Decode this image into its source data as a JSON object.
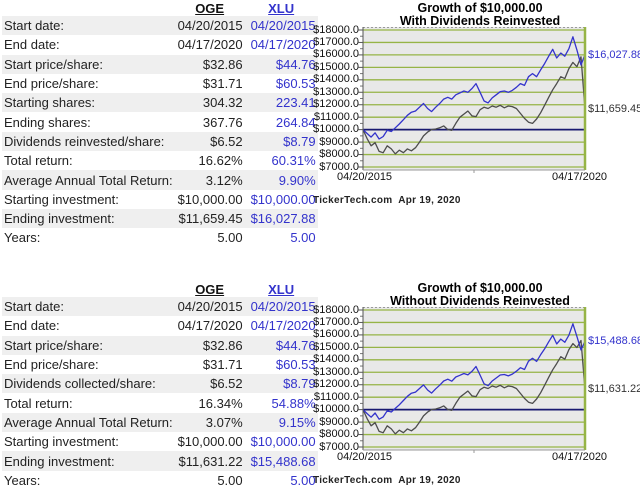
{
  "colors": {
    "plot_bg": "#e8e8e8",
    "grid_green": "#96b446",
    "baseline_navy": "#191970",
    "xlu_blue": "#3333cc",
    "oge_gray": "#4d4d4d",
    "stripe": "#efefef"
  },
  "tables": [
    {
      "columns": [
        "OGE",
        "XLU"
      ],
      "rows": [
        [
          "Start date:",
          "04/20/2015",
          "04/20/2015"
        ],
        [
          "End date:",
          "04/17/2020",
          "04/17/2020"
        ],
        [
          "Start price/share:",
          "$32.86",
          "$44.76"
        ],
        [
          "End price/share:",
          "$31.71",
          "$60.53"
        ],
        [
          "Starting shares:",
          "304.32",
          "223.41"
        ],
        [
          "Ending shares:",
          "367.76",
          "264.84"
        ],
        [
          "Dividends reinvested/share:",
          "$6.52",
          "$8.79"
        ],
        [
          "Total return:",
          "16.62%",
          "60.31%"
        ],
        [
          "Average Annual Total Return:",
          "3.12%",
          "9.90%"
        ],
        [
          "Starting investment:",
          "$10,000.00",
          "$10,000.00"
        ],
        [
          "Ending investment:",
          "$11,659.45",
          "$16,027.88"
        ],
        [
          "Years:",
          "5.00",
          "5.00"
        ]
      ]
    },
    {
      "columns": [
        "OGE",
        "XLU"
      ],
      "rows": [
        [
          "Start date:",
          "04/20/2015",
          "04/20/2015"
        ],
        [
          "End date:",
          "04/17/2020",
          "04/17/2020"
        ],
        [
          "Start price/share:",
          "$32.86",
          "$44.76"
        ],
        [
          "End price/share:",
          "$31.71",
          "$60.53"
        ],
        [
          "Dividends collected/share:",
          "$6.52",
          "$8.79"
        ],
        [
          "Total return:",
          "16.34%",
          "54.88%"
        ],
        [
          "Average Annual Total Return:",
          "3.07%",
          "9.15%"
        ],
        [
          "Starting investment:",
          "$10,000.00",
          "$10,000.00"
        ],
        [
          "Ending investment:",
          "$11,631.22",
          "$15,488.68"
        ],
        [
          "Years:",
          "5.00",
          "5.00"
        ]
      ]
    }
  ],
  "chart_data": [
    {
      "type": "line",
      "title": "Growth of $10,000.00",
      "subtitle": "With Dividends Reinvested",
      "x_start_label": "04/20/2015",
      "x_end_label": "04/17/2020",
      "footer": "TickerTech.com  Apr 19, 2020",
      "ylim": [
        7000,
        18000
      ],
      "y_tick_step": 1000,
      "y_tick_labels": [
        "$18000.0",
        "$17000.0",
        "$16000.0",
        "$15000.0",
        "$14000.0",
        "$13000.0",
        "$12000.0",
        "$11000.0",
        "$10000.0",
        "$9000.0",
        "$8000.0",
        "$7000.0"
      ],
      "grid": true,
      "baseline_value": 10000,
      "legend": "none",
      "series": [
        {
          "name": "XLU",
          "color": "#3333cc",
          "label_color": "#3333cc",
          "end_label": "$16,027.88",
          "end_value": 16027.88,
          "values": [
            10000,
            9700,
            9400,
            9750,
            9250,
            9450,
            9950,
            9850,
            10150,
            10450,
            10800,
            11150,
            11400,
            11500,
            11800,
            12100,
            11700,
            11450,
            11800,
            12100,
            12450,
            12600,
            12450,
            12800,
            12950,
            13100,
            13000,
            13300,
            13700,
            13000,
            12300,
            12150,
            12550,
            12800,
            13050,
            13100,
            13000,
            13150,
            13400,
            13700,
            13550,
            14250,
            14500,
            14250,
            14800,
            15300,
            15900,
            16450,
            15750,
            16150,
            15900,
            16500,
            17450,
            16400,
            15200,
            16027.88
          ]
        },
        {
          "name": "OGE",
          "color": "#4d4d4d",
          "label_color": "#333333",
          "end_label": "$11,659.45",
          "end_value": 11659.45,
          "values": [
            10000,
            9300,
            8700,
            8950,
            8250,
            8150,
            8700,
            8450,
            8050,
            8350,
            8150,
            8450,
            8300,
            8550,
            9000,
            9500,
            9800,
            10000,
            10050,
            10150,
            10300,
            10000,
            9950,
            10500,
            11000,
            11250,
            11500,
            11100,
            11050,
            11600,
            11800,
            11700,
            11900,
            11800,
            11950,
            11750,
            11900,
            11850,
            11700,
            11300,
            10900,
            10600,
            10500,
            10850,
            11350,
            11950,
            12600,
            13200,
            13700,
            14250,
            14100,
            14900,
            15400,
            15050,
            15850,
            11659.45
          ]
        }
      ]
    },
    {
      "type": "line",
      "title": "Growth of $10,000.00",
      "subtitle": "Without Dividends Reinvested",
      "x_start_label": "04/20/2015",
      "x_end_label": "04/17/2020",
      "footer": "TickerTech.com  Apr 19, 2020",
      "ylim": [
        7000,
        18000
      ],
      "y_tick_step": 1000,
      "y_tick_labels": [
        "$18000.0",
        "$17000.0",
        "$16000.0",
        "$15000.0",
        "$14000.0",
        "$13000.0",
        "$12000.0",
        "$11000.0",
        "$10000.0",
        "$9000.0",
        "$8000.0",
        "$7000.0"
      ],
      "grid": true,
      "baseline_value": 10000,
      "legend": "none",
      "series": [
        {
          "name": "XLU",
          "color": "#3333cc",
          "label_color": "#3333cc",
          "end_label": "$15,488.68",
          "end_value": 15488.68,
          "values": [
            10000,
            9690,
            9390,
            9730,
            9230,
            9420,
            9910,
            9810,
            10100,
            10390,
            10730,
            11070,
            11320,
            11410,
            11700,
            11990,
            11580,
            11330,
            11670,
            11960,
            12300,
            12440,
            12280,
            12620,
            12760,
            12900,
            12790,
            13080,
            13460,
            12770,
            12070,
            11920,
            12300,
            12540,
            12780,
            12820,
            12710,
            12850,
            13090,
            13370,
            13220,
            13890,
            14120,
            13870,
            14400,
            14880,
            15450,
            15970,
            15280,
            15660,
            15410,
            15980,
            16890,
            15880,
            14800,
            15488.68
          ]
        },
        {
          "name": "OGE",
          "color": "#4d4d4d",
          "label_color": "#333333",
          "end_label": "$11,631.22",
          "end_value": 11631.22,
          "values": [
            10000,
            9300,
            8700,
            8950,
            8250,
            8150,
            8700,
            8450,
            8050,
            8350,
            8150,
            8450,
            8300,
            8550,
            9000,
            9500,
            9800,
            10000,
            10050,
            10150,
            10300,
            10000,
            9950,
            10500,
            11000,
            11250,
            11500,
            11100,
            11050,
            11600,
            11800,
            11700,
            11900,
            11800,
            11950,
            11750,
            11900,
            11850,
            11700,
            11300,
            10900,
            10600,
            10500,
            10850,
            11350,
            11950,
            12600,
            13200,
            13700,
            14250,
            14050,
            14820,
            15300,
            14980,
            15550,
            11631.22
          ]
        }
      ]
    }
  ]
}
